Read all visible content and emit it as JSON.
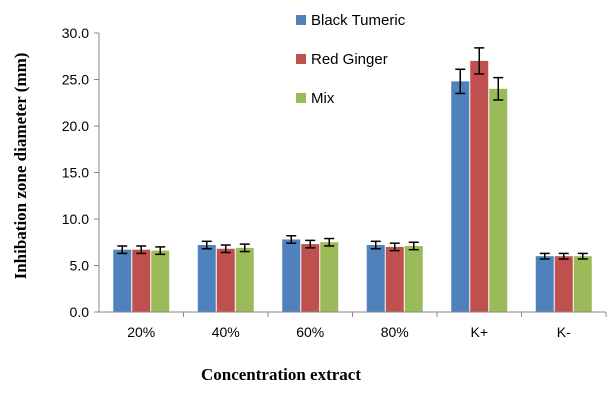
{
  "chart_data": {
    "type": "bar",
    "categories": [
      "20%",
      "40%",
      "60%",
      "80%",
      "K+",
      "K-"
    ],
    "series": [
      {
        "name": "Black Tumeric",
        "color": "#4F81BD",
        "values": [
          6.7,
          7.2,
          7.8,
          7.2,
          24.8,
          6.0
        ],
        "errors": [
          0.4,
          0.4,
          0.4,
          0.4,
          1.3,
          0.3
        ]
      },
      {
        "name": "Red Ginger",
        "color": "#C0504D",
        "values": [
          6.7,
          6.8,
          7.3,
          7.0,
          27.0,
          6.0
        ],
        "errors": [
          0.4,
          0.4,
          0.4,
          0.4,
          1.4,
          0.3
        ]
      },
      {
        "name": "Mix",
        "color": "#9BBB59",
        "values": [
          6.6,
          6.9,
          7.5,
          7.1,
          24.0,
          6.0
        ],
        "errors": [
          0.4,
          0.4,
          0.4,
          0.4,
          1.2,
          0.3
        ]
      }
    ],
    "y_ticks": [
      "0.0",
      "5.0",
      "10.0",
      "15.0",
      "20.0",
      "25.0",
      "30.0"
    ],
    "ylim": [
      0,
      30
    ],
    "ylabel": "Inhibation zone diameter (mm)",
    "xlabel": "Concentration extract",
    "legend_position": "top-center",
    "grid": false
  }
}
